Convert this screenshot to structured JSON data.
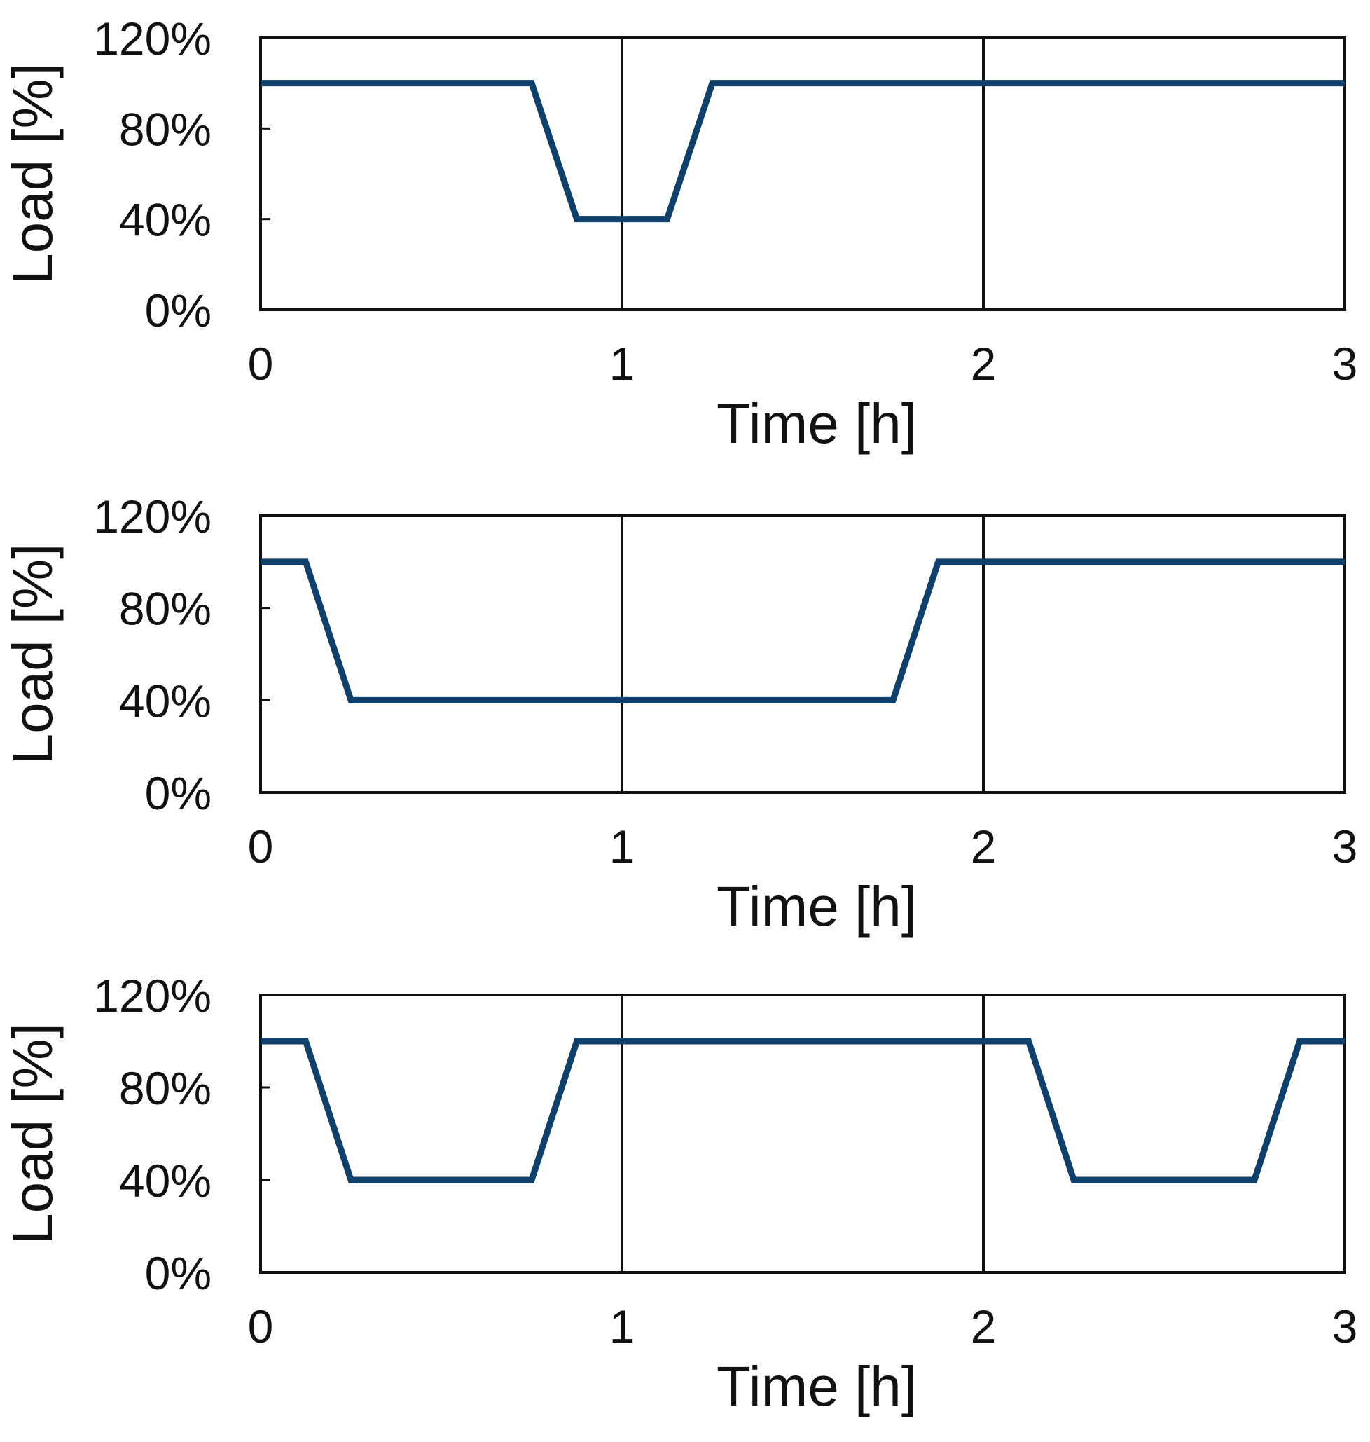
{
  "chart_data": [
    {
      "type": "line",
      "xlabel": "Time [h]",
      "ylabel": "Load [%]",
      "xlim": [
        0,
        3
      ],
      "ylim": [
        0,
        120
      ],
      "xticks": [
        0,
        1,
        2,
        3
      ],
      "xtick_labels": [
        "0",
        "1",
        "2",
        "3"
      ],
      "yticks": [
        0,
        40,
        80,
        120
      ],
      "ytick_labels": [
        "0%",
        "40%",
        "80%",
        "120%"
      ],
      "vertical_gridlines_at": [
        1,
        2
      ],
      "series": [
        {
          "color": "#0f3f6b",
          "x": [
            0,
            0.75,
            0.875,
            1.125,
            1.25,
            3
          ],
          "y": [
            100,
            100,
            40,
            40,
            100,
            100
          ]
        }
      ]
    },
    {
      "type": "line",
      "xlabel": "Time [h]",
      "ylabel": "Load [%]",
      "xlim": [
        0,
        3
      ],
      "ylim": [
        0,
        120
      ],
      "xticks": [
        0,
        1,
        2,
        3
      ],
      "xtick_labels": [
        "0",
        "1",
        "2",
        "3"
      ],
      "yticks": [
        0,
        40,
        80,
        120
      ],
      "ytick_labels": [
        "0%",
        "40%",
        "80%",
        "120%"
      ],
      "vertical_gridlines_at": [
        1,
        2
      ],
      "series": [
        {
          "color": "#0f3f6b",
          "x": [
            0,
            0.125,
            0.25,
            1.75,
            1.875,
            3
          ],
          "y": [
            100,
            100,
            40,
            40,
            100,
            100
          ]
        }
      ]
    },
    {
      "type": "line",
      "xlabel": "Time [h]",
      "ylabel": "Load [%]",
      "xlim": [
        0,
        3
      ],
      "ylim": [
        0,
        120
      ],
      "xticks": [
        0,
        1,
        2,
        3
      ],
      "xtick_labels": [
        "0",
        "1",
        "2",
        "3"
      ],
      "yticks": [
        0,
        40,
        80,
        120
      ],
      "ytick_labels": [
        "0%",
        "40%",
        "80%",
        "120%"
      ],
      "vertical_gridlines_at": [
        1,
        2
      ],
      "series": [
        {
          "color": "#0f3f6b",
          "x": [
            0,
            0.125,
            0.25,
            0.75,
            0.875,
            2.125,
            2.25,
            2.75,
            2.875,
            3
          ],
          "y": [
            100,
            100,
            40,
            40,
            100,
            100,
            40,
            40,
            100,
            100
          ]
        }
      ]
    }
  ]
}
